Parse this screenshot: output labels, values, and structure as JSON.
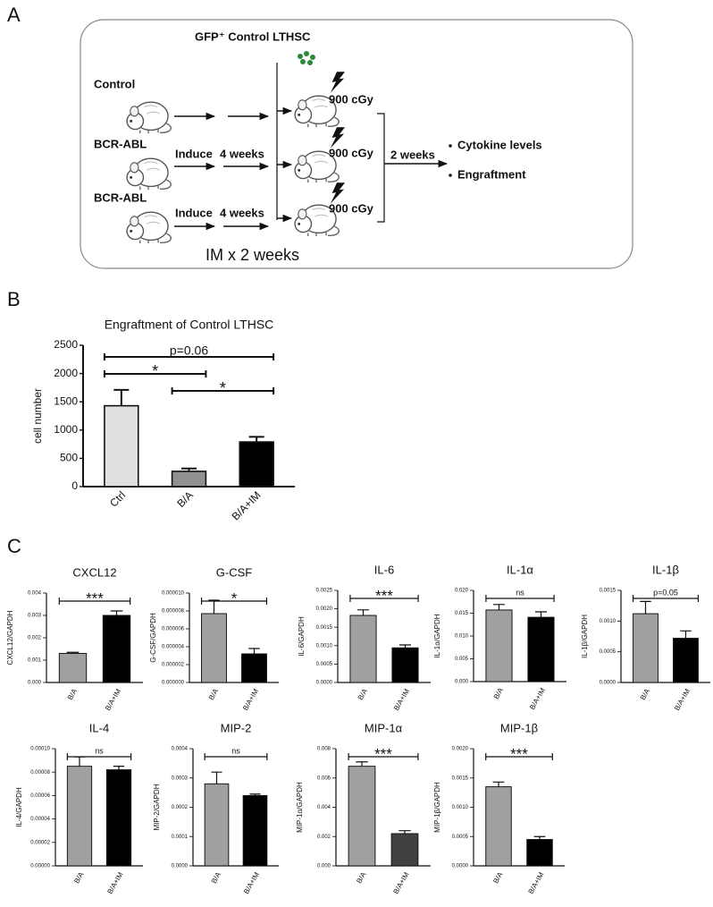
{
  "panel_labels": [
    "A",
    "B",
    "C"
  ],
  "diagram": {
    "title": "GFP⁺ Control LTHSC",
    "rows": [
      {
        "label": "Control",
        "steps": [],
        "dose": "900 cGy"
      },
      {
        "label": "BCR-ABL",
        "steps": [
          "Induce",
          "4 weeks"
        ],
        "dose": "900 cGy"
      },
      {
        "label": "BCR-ABL",
        "steps": [
          "Induce",
          "4 weeks"
        ],
        "dose": "900 cGy"
      }
    ],
    "wait": "2 weeks",
    "outcomes": [
      "Cytokine levels",
      "Engraftment"
    ],
    "treatment": "IM x 2 weeks"
  },
  "chart_data": [
    {
      "type": "bar",
      "title": "Engraftment of Control LTHSC",
      "y_label": "cell number",
      "categories": [
        "Ctrl",
        "B/A",
        "B/A+IM"
      ],
      "values": [
        1430,
        270,
        790
      ],
      "errors": [
        280,
        50,
        90
      ],
      "colors": [
        "#e0e0e0",
        "#909090",
        "#000000"
      ],
      "ylim": [
        0,
        2500
      ],
      "yticks": [
        0,
        500,
        1000,
        1500,
        2000,
        2500
      ],
      "brackets": [
        {
          "from": "Ctrl",
          "to": "B/A+IM",
          "label": "p=0.06"
        },
        {
          "from": "Ctrl",
          "to": "B/A",
          "label": "*"
        },
        {
          "from": "B/A",
          "to": "B/A+IM",
          "label": "*"
        }
      ]
    },
    {
      "type": "bar",
      "title": "CXCL12",
      "y_label": "CXCL12/GAPDH",
      "categories": [
        "B/A",
        "B/A+IM"
      ],
      "values": [
        0.0013,
        0.003
      ],
      "errors": [
        5e-05,
        0.0002
      ],
      "colors": [
        "#a0a0a0",
        "#000000"
      ],
      "ylim": [
        0,
        0.004
      ],
      "yticks": [
        {
          "value": 0,
          "label": "0.000"
        },
        0.001,
        0.002,
        0.003,
        0.004
      ],
      "brackets": [
        {
          "from": "B/A",
          "to": "B/A+IM",
          "label": "***"
        }
      ]
    },
    {
      "type": "bar",
      "title": "G-CSF",
      "y_label": "G-CSF/GAPDH",
      "categories": [
        "B/A",
        "B/A+IM"
      ],
      "values": [
        7.7e-06,
        3.2e-06
      ],
      "errors": [
        1.5e-06,
        6e-07
      ],
      "colors": [
        "#a0a0a0",
        "#000000"
      ],
      "ylim": [
        0,
        1e-05
      ],
      "yticks": [
        {
          "value": 0,
          "label": "0.000000"
        },
        2e-06,
        4e-06,
        6e-06,
        8e-06,
        {
          "value": 1e-05,
          "label": "0.000010"
        }
      ],
      "brackets": [
        {
          "from": "B/A",
          "to": "B/A+IM",
          "label": "*"
        }
      ]
    },
    {
      "type": "bar",
      "title": "IL-6",
      "y_label": "IL-6/GAPDH",
      "categories": [
        "B/A",
        "B/A+IM"
      ],
      "values": [
        0.00182,
        0.00094
      ],
      "errors": [
        0.00015,
        8e-05
      ],
      "colors": [
        "#a0a0a0",
        "#000000"
      ],
      "ylim": [
        0,
        0.0025
      ],
      "yticks": [
        {
          "value": 0,
          "label": "0.0000"
        },
        0.0005,
        {
          "value": 0.001,
          "label": "0.0010"
        },
        0.0015,
        {
          "value": 0.002,
          "label": "0.0020"
        },
        0.0025
      ],
      "brackets": [
        {
          "from": "B/A",
          "to": "B/A+IM",
          "label": "***"
        }
      ]
    },
    {
      "type": "bar",
      "title": "IL-1α",
      "y_label": "IL-1α/GAPDH",
      "categories": [
        "B/A",
        "B/A+IM"
      ],
      "values": [
        0.0157,
        0.0141
      ],
      "errors": [
        0.0012,
        0.0012
      ],
      "colors": [
        "#a0a0a0",
        "#000000"
      ],
      "ylim": [
        0,
        0.02
      ],
      "yticks": [
        {
          "value": 0,
          "label": "0.000"
        },
        0.005,
        {
          "value": 0.01,
          "label": "0.010"
        },
        0.015,
        {
          "value": 0.02,
          "label": "0.020"
        }
      ],
      "brackets": [
        {
          "from": "B/A",
          "to": "B/A+IM",
          "label": "ns"
        }
      ]
    },
    {
      "type": "bar",
      "title": "IL-1β",
      "y_label": "IL-1β/GAPDH",
      "categories": [
        "B/A",
        "B/A+IM"
      ],
      "values": [
        0.00112,
        0.00072
      ],
      "errors": [
        0.0002,
        0.00012
      ],
      "colors": [
        "#a0a0a0",
        "#000000"
      ],
      "ylim": [
        0,
        0.0015
      ],
      "yticks": [
        {
          "value": 0,
          "label": "0.0000"
        },
        0.0005,
        {
          "value": 0.001,
          "label": "0.0010"
        },
        0.0015
      ],
      "brackets": [
        {
          "from": "B/A",
          "to": "B/A+IM",
          "label": "p=0.05"
        }
      ]
    },
    {
      "type": "bar",
      "title": "IL-4",
      "y_label": "IL-4/GAPDH",
      "categories": [
        "B/A",
        "B/A+IM"
      ],
      "values": [
        8.5e-05,
        8.2e-05
      ],
      "errors": [
        8e-06,
        3e-06
      ],
      "colors": [
        "#a0a0a0",
        "#000000"
      ],
      "ylim": [
        0,
        0.0001
      ],
      "yticks": [
        {
          "value": 0,
          "label": "0.00000"
        },
        2e-05,
        4e-05,
        6e-05,
        8e-05,
        {
          "value": 0.0001,
          "label": "0.00010"
        }
      ],
      "brackets": [
        {
          "from": "B/A",
          "to": "B/A+IM",
          "label": "ns"
        }
      ]
    },
    {
      "type": "bar",
      "title": "MIP-2",
      "y_label": "MIP-2/GAPDH",
      "categories": [
        "B/A",
        "B/A+IM"
      ],
      "values": [
        0.00028,
        0.00024
      ],
      "errors": [
        4e-05,
        5e-06
      ],
      "colors": [
        "#a0a0a0",
        "#000000"
      ],
      "ylim": [
        0,
        0.0004
      ],
      "yticks": [
        {
          "value": 0,
          "label": "0.0000"
        },
        0.0001,
        0.0002,
        0.0003,
        0.0004
      ],
      "brackets": [
        {
          "from": "B/A",
          "to": "B/A+IM",
          "label": "ns"
        }
      ]
    },
    {
      "type": "bar",
      "title": "MIP-1α",
      "y_label": "MIP-1α/GAPDH",
      "categories": [
        "B/A",
        "B/A+IM"
      ],
      "values": [
        0.0068,
        0.0022
      ],
      "errors": [
        0.0003,
        0.0002
      ],
      "colors": [
        "#a0a0a0",
        "#404040"
      ],
      "ylim": [
        0,
        0.008
      ],
      "yticks": [
        {
          "value": 0,
          "label": "0.000"
        },
        0.002,
        0.004,
        0.006,
        0.008
      ],
      "brackets": [
        {
          "from": "B/A",
          "to": "B/A+IM",
          "label": "***"
        }
      ]
    },
    {
      "type": "bar",
      "title": "MIP-1β",
      "y_label": "MIP-1β/GAPDH",
      "categories": [
        "B/A",
        "B/A+IM"
      ],
      "values": [
        0.00135,
        0.00045
      ],
      "errors": [
        8e-05,
        5e-05
      ],
      "colors": [
        "#a0a0a0",
        "#000000"
      ],
      "ylim": [
        0,
        0.002
      ],
      "yticks": [
        {
          "value": 0,
          "label": "0.0000"
        },
        0.0005,
        {
          "value": 0.001,
          "label": "0.0010"
        },
        0.0015,
        {
          "value": 0.002,
          "label": "0.0020"
        }
      ],
      "brackets": [
        {
          "from": "B/A",
          "to": "B/A+IM",
          "label": "***"
        }
      ]
    }
  ]
}
